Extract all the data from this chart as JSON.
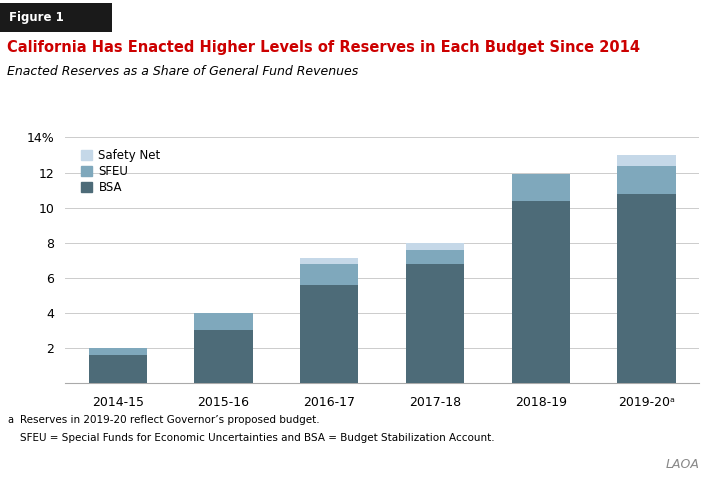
{
  "categories": [
    "2014-15",
    "2015-16",
    "2016-17",
    "2017-18",
    "2018-19",
    "2019-20ᵃ"
  ],
  "bsa": [
    1.6,
    3.0,
    5.6,
    6.8,
    10.4,
    10.8
  ],
  "sfeu": [
    0.4,
    1.0,
    1.2,
    0.8,
    1.5,
    1.6
  ],
  "safety_net": [
    0.0,
    0.0,
    0.3,
    0.4,
    0.0,
    0.6
  ],
  "color_bsa": "#4d6b78",
  "color_sfeu": "#7fa8bc",
  "color_safety_net": "#c5d8e8",
  "title": "California Has Enacted Higher Levels of Reserves in Each Budget Since 2014",
  "subtitle": "Enacted Reserves as a Share of General Fund Revenues",
  "figure_label": "Figure 1",
  "ylim": [
    0,
    14
  ],
  "yticks": [
    0,
    2,
    4,
    6,
    8,
    10,
    12,
    14
  ],
  "footnote1": "Reserves in 2019-20 reflect Governor’s proposed budget.",
  "footnote2": "SFEU = Special Funds for Economic Uncertainties and BSA = Budget Stabilization Account.",
  "footnote_label": "a",
  "laoa_label": "LAOA",
  "legend_labels": [
    "Safety Net",
    "SFEU",
    "BSA"
  ],
  "title_color": "#cc0000",
  "subtitle_color": "#000000",
  "figure_label_bg": "#1a1a1a",
  "figure_label_color": "#ffffff",
  "bar_width": 0.55,
  "grid_color": "#cccccc",
  "spine_color": "#aaaaaa"
}
